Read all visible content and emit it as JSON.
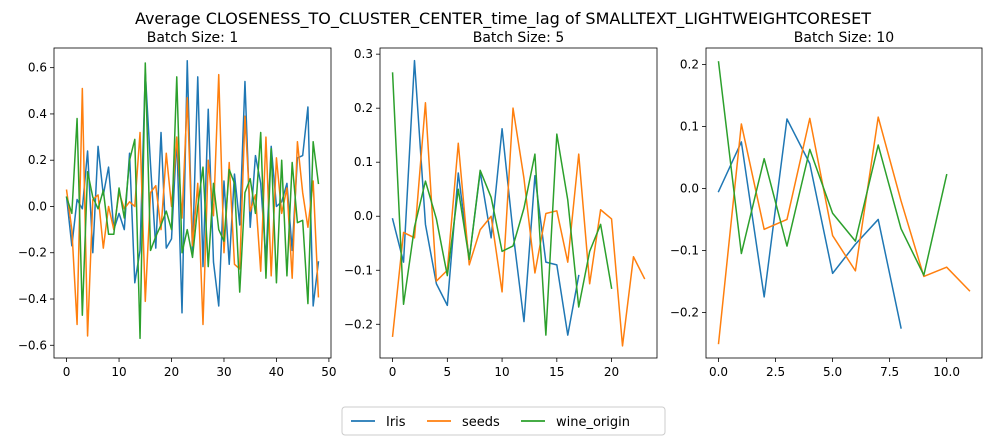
{
  "figure": {
    "suptitle": "Average CLOSENESS_TO_CLUSTER_CENTER_time_lag of SMALLTEXT_LIGHTWEIGHTCORESET"
  },
  "colors": {
    "Iris": "#1f77b4",
    "seeds": "#ff7f0e",
    "wine_origin": "#2ca02c"
  },
  "legend": {
    "placement": "bottom-center",
    "entries": [
      "Iris",
      "seeds",
      "wine_origin"
    ]
  },
  "chart_data": [
    {
      "type": "line",
      "title": "Batch Size: 1",
      "xlabel": "",
      "ylabel": "",
      "xlim": [
        -2.4,
        50.4
      ],
      "ylim": [
        -0.655,
        0.685
      ],
      "xticks": [
        0,
        10,
        20,
        30,
        40,
        50
      ],
      "yticks": [
        -0.6,
        -0.4,
        -0.2,
        0.0,
        0.2,
        0.4,
        0.6
      ],
      "xtick_labels": [
        "0",
        "10",
        "20",
        "30",
        "40",
        "50"
      ],
      "ytick_labels": [
        "−0.6",
        "−0.4",
        "−0.2",
        "0.0",
        "0.2",
        "0.4",
        "0.6"
      ],
      "grid": false,
      "series": [
        {
          "name": "Iris",
          "x": [
            0,
            1,
            2,
            3,
            4,
            5,
            6,
            7,
            8,
            9,
            10,
            11,
            12,
            13,
            14,
            15,
            16,
            17,
            18,
            19,
            20,
            21,
            22,
            23,
            24,
            25,
            26,
            27,
            28,
            29,
            30,
            31,
            32,
            33,
            34,
            35,
            36,
            37,
            38,
            39,
            40,
            41,
            42,
            43,
            44,
            45,
            46,
            47,
            48
          ],
          "values": [
            0.04,
            -0.17,
            0.03,
            -0.01,
            0.24,
            -0.2,
            0.26,
            0.05,
            0.17,
            -0.1,
            -0.03,
            -0.1,
            0.23,
            -0.33,
            -0.19,
            0.58,
            0.18,
            -0.18,
            0.32,
            -0.18,
            -0.14,
            0.3,
            -0.46,
            0.63,
            -0.2,
            0.56,
            -0.26,
            0.42,
            -0.24,
            -0.43,
            0.11,
            -0.25,
            0.14,
            -0.08,
            0.54,
            -0.09,
            0.22,
            0.1,
            -0.23,
            0.26,
            0.0,
            0.02,
            0.1,
            -0.19,
            0.21,
            0.22,
            0.43,
            -0.43,
            -0.24
          ]
        },
        {
          "name": "seeds",
          "x": [
            0,
            1,
            2,
            3,
            4,
            5,
            6,
            7,
            8,
            9,
            10,
            11,
            12,
            13,
            14,
            15,
            16,
            17,
            18,
            19,
            20,
            21,
            22,
            23,
            24,
            25,
            26,
            27,
            28,
            29,
            30,
            31,
            32,
            33,
            34,
            35,
            36,
            37,
            38,
            39,
            40,
            41,
            42,
            43,
            44,
            45,
            46,
            47,
            48
          ],
          "values": [
            0.07,
            -0.1,
            -0.51,
            0.51,
            -0.56,
            0.03,
            0.05,
            -0.18,
            0.0,
            -0.1,
            0.06,
            -0.01,
            0.02,
            0.0,
            0.32,
            -0.41,
            0.06,
            0.09,
            -0.1,
            0.23,
            0.0,
            0.3,
            -0.05,
            0.47,
            -0.17,
            0.1,
            -0.51,
            0.2,
            -0.04,
            0.57,
            -0.2,
            0.19,
            -0.25,
            -0.27,
            0.39,
            -0.02,
            0.05,
            -0.28,
            0.3,
            -0.3,
            0.21,
            -0.03,
            0.08,
            -0.31,
            0.28,
            0.06,
            -0.09,
            0.11,
            -0.39
          ]
        },
        {
          "name": "wine_origin",
          "x": [
            0,
            1,
            2,
            3,
            4,
            5,
            6,
            7,
            8,
            9,
            10,
            11,
            12,
            13,
            14,
            15,
            16,
            17,
            18,
            19,
            20,
            21,
            22,
            23,
            24,
            25,
            26,
            27,
            28,
            29,
            30,
            31,
            32,
            33,
            34,
            35,
            36,
            37,
            38,
            39,
            40,
            41,
            42,
            43,
            44,
            45,
            46,
            47,
            48
          ],
          "values": [
            0.04,
            -0.03,
            0.38,
            -0.47,
            0.15,
            0.04,
            -0.01,
            0.07,
            -0.12,
            -0.12,
            0.08,
            -0.05,
            0.2,
            0.29,
            -0.57,
            0.62,
            -0.19,
            -0.13,
            -0.08,
            -0.02,
            -0.1,
            0.56,
            -0.2,
            -0.1,
            -0.22,
            0.0,
            0.17,
            -0.26,
            0.1,
            -0.1,
            -0.15,
            0.16,
            0.1,
            -0.37,
            0.06,
            0.12,
            -0.03,
            0.32,
            -0.31,
            0.25,
            -0.33,
            0.2,
            -0.3,
            0.19,
            -0.07,
            -0.06,
            -0.42,
            0.28,
            0.1
          ]
        }
      ]
    },
    {
      "type": "line",
      "title": "Batch Size: 5",
      "xlabel": "",
      "ylabel": "",
      "xlim": [
        -1.15,
        24.15
      ],
      "ylim": [
        -0.2624,
        0.3114
      ],
      "xticks": [
        0,
        5,
        10,
        15,
        20
      ],
      "yticks": [
        -0.2,
        -0.1,
        0.0,
        0.1,
        0.2,
        0.3
      ],
      "xtick_labels": [
        "0",
        "5",
        "10",
        "15",
        "20"
      ],
      "ytick_labels": [
        "−0.2",
        "−0.1",
        "0.0",
        "0.1",
        "0.2",
        "0.3"
      ],
      "grid": false,
      "series": [
        {
          "name": "Iris",
          "x": [
            0,
            1,
            2,
            3,
            4,
            5,
            6,
            7,
            8,
            9,
            10,
            11,
            12,
            13,
            14,
            15,
            16,
            17
          ],
          "values": [
            -0.005,
            -0.085,
            0.288,
            -0.015,
            -0.125,
            -0.165,
            0.08,
            -0.08,
            0.082,
            -0.04,
            0.162,
            -0.03,
            -0.195,
            0.075,
            -0.085,
            -0.09,
            -0.22,
            -0.11
          ]
        },
        {
          "name": "seeds",
          "x": [
            0,
            1,
            2,
            3,
            4,
            5,
            6,
            7,
            8,
            9,
            10,
            11,
            12,
            13,
            14,
            15,
            16,
            17,
            18,
            19,
            20,
            21,
            22,
            23
          ],
          "values": [
            -0.222,
            -0.03,
            -0.04,
            0.21,
            -0.12,
            -0.1,
            0.135,
            -0.09,
            -0.025,
            0.0,
            -0.14,
            0.2,
            0.07,
            -0.105,
            0.005,
            0.01,
            -0.085,
            0.115,
            -0.125,
            0.012,
            -0.005,
            -0.24,
            -0.075,
            -0.115
          ]
        },
        {
          "name": "wine_origin",
          "x": [
            0,
            1,
            2,
            3,
            4,
            5,
            6,
            7,
            8,
            9,
            10,
            11,
            12,
            13,
            14,
            15,
            16,
            17,
            18,
            19,
            20
          ],
          "values": [
            0.265,
            -0.163,
            -0.02,
            0.065,
            -0.005,
            -0.11,
            0.05,
            -0.08,
            0.085,
            0.035,
            -0.065,
            -0.055,
            0.015,
            0.115,
            -0.22,
            0.152,
            0.03,
            -0.168,
            -0.065,
            -0.015,
            -0.133
          ]
        }
      ]
    },
    {
      "type": "line",
      "title": "Batch Size: 10",
      "xlabel": "",
      "ylabel": "",
      "xlim": [
        -0.55,
        11.55
      ],
      "ylim": [
        -0.2735,
        0.2265
      ],
      "xticks": [
        0,
        2.5,
        5,
        7.5,
        10
      ],
      "yticks": [
        -0.2,
        -0.1,
        0.0,
        0.1,
        0.2
      ],
      "xtick_labels": [
        "0.0",
        "2.5",
        "5.0",
        "7.5",
        "10.0"
      ],
      "ytick_labels": [
        "−0.2",
        "−0.1",
        "0.0",
        "0.1",
        "0.2"
      ],
      "grid": false,
      "series": [
        {
          "name": "Iris",
          "x": [
            0,
            1,
            2,
            3,
            4,
            5,
            6,
            7,
            8
          ],
          "values": [
            -0.005,
            0.075,
            -0.175,
            0.112,
            0.04,
            -0.137,
            -0.09,
            -0.05,
            -0.225
          ]
        },
        {
          "name": "seeds",
          "x": [
            0,
            1,
            2,
            3,
            4,
            5,
            6,
            7,
            8,
            9,
            10,
            11
          ],
          "values": [
            -0.25,
            0.104,
            -0.066,
            -0.05,
            0.113,
            -0.076,
            -0.133,
            0.115,
            -0.02,
            -0.142,
            -0.127,
            -0.165
          ]
        },
        {
          "name": "wine_origin",
          "x": [
            0,
            1,
            2,
            3,
            4,
            5,
            6,
            7,
            8,
            9,
            10
          ],
          "values": [
            0.204,
            -0.105,
            0.048,
            -0.093,
            0.063,
            -0.04,
            -0.085,
            0.07,
            -0.065,
            -0.14,
            0.022
          ]
        }
      ]
    }
  ]
}
